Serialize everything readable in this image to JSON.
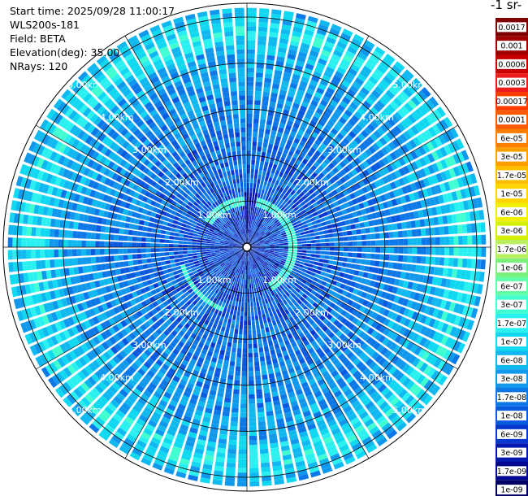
{
  "header": {
    "start_time": "Start time: 2025/09/28 11:00:17",
    "instrument": "WLS200s-181",
    "field": "Field: BETA",
    "elevation": "Elevation(deg): 35.00",
    "nrays": "NRays: 120"
  },
  "chart_data": {
    "type": "heatmap",
    "projection": "polar-ppi",
    "field": "BETA",
    "rays": 120,
    "range_rings_km": [
      1,
      2,
      3,
      4,
      5
    ],
    "range_ring_labels": [
      "1.00km",
      "2.00km",
      "3.00km",
      "4.00km",
      "5.00km"
    ],
    "max_range_km": 5.3,
    "colorbar": {
      "title": "-1 sr-",
      "tick_labels": [
        "0.0017",
        "0.001",
        "0.0006",
        "0.0003",
        "0.00017",
        "0.0001",
        "6e-05",
        "3e-05",
        "1.7e-05",
        "1e-05",
        "6e-06",
        "3e-06",
        "1.7e-06",
        "1e-06",
        "6e-07",
        "3e-07",
        "1.7e-07",
        "1e-07",
        "6e-08",
        "3e-08",
        "1.7e-08",
        "1e-08",
        "6e-09",
        "3e-09",
        "1.7e-09",
        "1e-09"
      ],
      "colors": [
        "#800000",
        "#a00000",
        "#c80000",
        "#ee1c1c",
        "#ff3c00",
        "#ff5a00",
        "#ff7e00",
        "#ff9e00",
        "#ffbe00",
        "#ffd400",
        "#f0f000",
        "#d4f000",
        "#b8f060",
        "#7cf07c",
        "#60ffa8",
        "#40ffd0",
        "#2af0f0",
        "#10d8f0",
        "#10b8f0",
        "#1098ec",
        "#0c78e8",
        "#0a5ae0",
        "#0838d0",
        "#0618b0",
        "#040890",
        "#020060"
      ]
    }
  }
}
